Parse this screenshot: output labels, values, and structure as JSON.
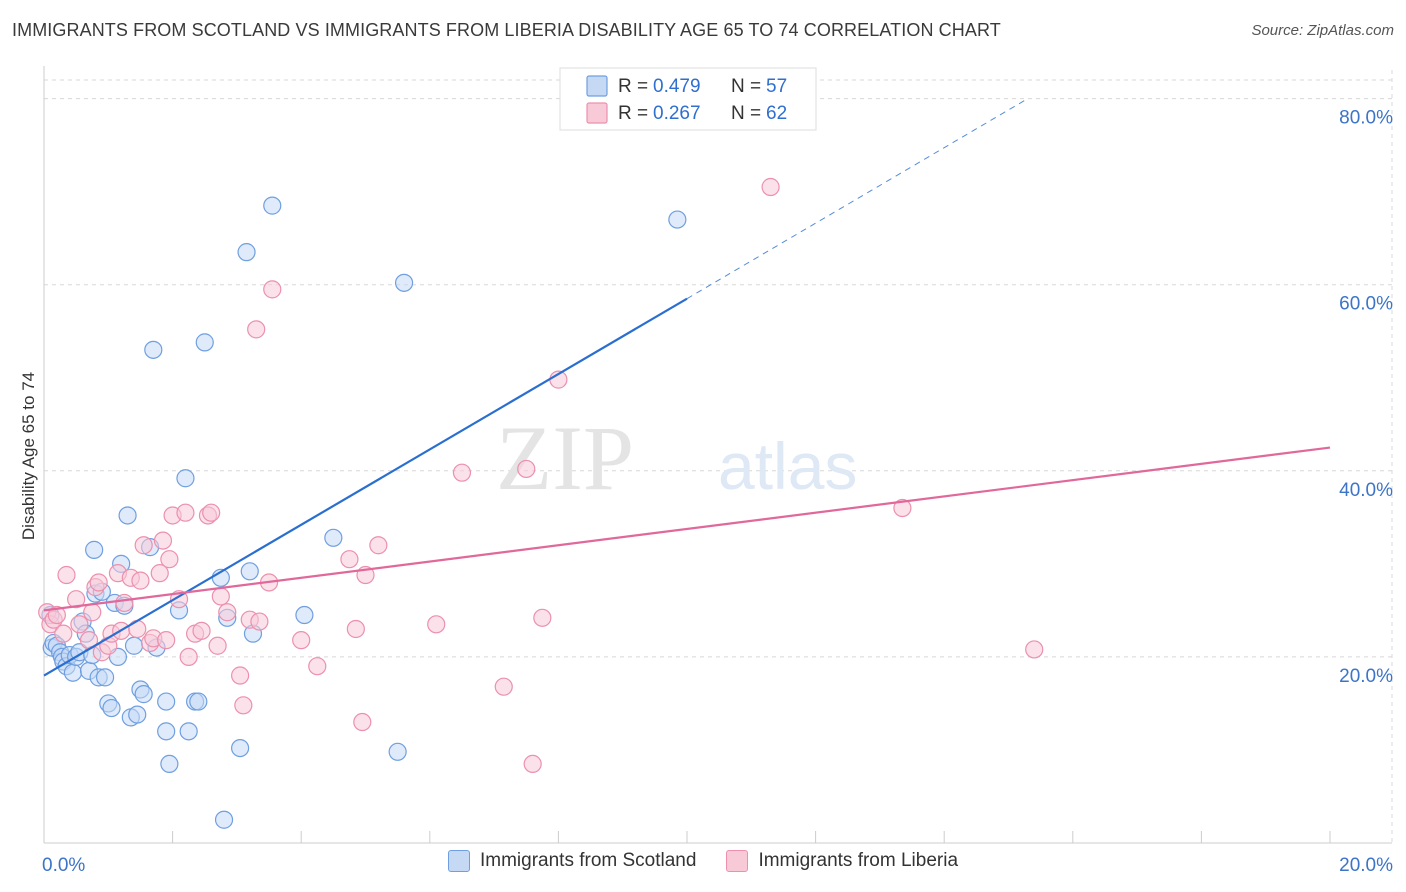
{
  "chart_data": {
    "type": "scatter",
    "title": "IMMIGRANTS FROM SCOTLAND VS IMMIGRANTS FROM LIBERIA DISABILITY AGE 65 TO 74 CORRELATION CHART",
    "source": "Source: ZipAtlas.com",
    "watermark_left": "ZIP",
    "watermark_right": "atlas",
    "xlabel": "",
    "ylabel": "Disability Age 65 to 74",
    "xlim": [
      0,
      20
    ],
    "ylim": [
      0,
      82
    ],
    "x_tick_labels": [
      {
        "value": 0,
        "label": "0.0%"
      },
      {
        "value": 20,
        "label": "20.0%"
      }
    ],
    "y_tick_labels": [
      {
        "value": 20,
        "label": "20.0%"
      },
      {
        "value": 40,
        "label": "40.0%"
      },
      {
        "value": 60,
        "label": "60.0%"
      },
      {
        "value": 80,
        "label": "80.0%"
      }
    ],
    "x_minor_ticks": [
      0,
      2,
      4,
      6,
      8,
      10,
      12,
      14,
      16,
      18,
      20
    ],
    "grid": true,
    "legend": {
      "placement": "top-center",
      "entries": [
        {
          "r_label": "R =",
          "r_value": "0.479",
          "n_label": "N =",
          "n_value": "57"
        },
        {
          "r_label": "R =",
          "r_value": "0.267",
          "n_label": "N =",
          "n_value": "62"
        }
      ]
    },
    "series": [
      {
        "name": "Immigrants from Scotland",
        "color": "#6f9fe0",
        "fill": "#c5d9f5",
        "line_color": "#2a6fd0",
        "trend": {
          "x0": 0,
          "y0": 18.0,
          "x1": 10,
          "y1": 58.5,
          "dash_to_x": 15.3,
          "dash_to_y": 80
        },
        "points": [
          [
            0.1,
            24.5
          ],
          [
            0.12,
            21.0
          ],
          [
            0.15,
            21.5
          ],
          [
            0.2,
            21.2
          ],
          [
            0.25,
            20.5
          ],
          [
            0.28,
            20.0
          ],
          [
            0.3,
            19.5
          ],
          [
            0.35,
            19.0
          ],
          [
            0.4,
            20.2
          ],
          [
            0.45,
            18.3
          ],
          [
            0.5,
            20.0
          ],
          [
            0.55,
            20.5
          ],
          [
            0.6,
            23.8
          ],
          [
            0.65,
            22.5
          ],
          [
            0.7,
            18.5
          ],
          [
            0.75,
            20.2
          ],
          [
            0.8,
            26.8
          ],
          [
            0.78,
            31.5
          ],
          [
            0.85,
            17.8
          ],
          [
            0.9,
            27.0
          ],
          [
            0.95,
            17.8
          ],
          [
            1.0,
            15.0
          ],
          [
            1.05,
            14.5
          ],
          [
            1.1,
            25.8
          ],
          [
            1.15,
            20.0
          ],
          [
            1.2,
            30.0
          ],
          [
            1.25,
            25.5
          ],
          [
            1.3,
            35.2
          ],
          [
            1.35,
            13.5
          ],
          [
            1.4,
            21.2
          ],
          [
            1.45,
            13.8
          ],
          [
            1.5,
            16.5
          ],
          [
            1.55,
            16.0
          ],
          [
            1.65,
            31.8
          ],
          [
            1.7,
            53.0
          ],
          [
            1.75,
            21.0
          ],
          [
            1.9,
            12.0
          ],
          [
            1.9,
            15.2
          ],
          [
            1.95,
            8.5
          ],
          [
            2.1,
            25.0
          ],
          [
            2.2,
            39.2
          ],
          [
            2.25,
            12.0
          ],
          [
            2.35,
            15.2
          ],
          [
            2.4,
            15.2
          ],
          [
            2.5,
            53.8
          ],
          [
            2.75,
            28.5
          ],
          [
            2.8,
            2.5
          ],
          [
            2.85,
            24.2
          ],
          [
            3.05,
            10.2
          ],
          [
            3.2,
            29.2
          ],
          [
            3.15,
            63.5
          ],
          [
            3.25,
            22.5
          ],
          [
            3.55,
            68.5
          ],
          [
            4.05,
            24.5
          ],
          [
            4.5,
            32.8
          ],
          [
            5.5,
            9.8
          ],
          [
            5.6,
            60.2
          ],
          [
            9.85,
            67.0
          ]
        ]
      },
      {
        "name": "Immigrants from Liberia",
        "color": "#ec90ad",
        "fill": "#f8cad8",
        "line_color": "#e0689a",
        "trend": {
          "x0": 0,
          "y0": 25.0,
          "x1": 20,
          "y1": 42.5
        },
        "points": [
          [
            0.05,
            24.8
          ],
          [
            0.1,
            23.5
          ],
          [
            0.15,
            24.0
          ],
          [
            0.2,
            24.5
          ],
          [
            0.3,
            22.5
          ],
          [
            0.35,
            28.8
          ],
          [
            0.5,
            26.2
          ],
          [
            0.55,
            23.5
          ],
          [
            0.7,
            21.8
          ],
          [
            0.75,
            24.8
          ],
          [
            0.8,
            27.5
          ],
          [
            0.85,
            28.0
          ],
          [
            0.9,
            20.5
          ],
          [
            1.0,
            21.2
          ],
          [
            1.05,
            22.5
          ],
          [
            1.15,
            29.0
          ],
          [
            1.2,
            22.8
          ],
          [
            1.25,
            25.8
          ],
          [
            1.35,
            28.5
          ],
          [
            1.45,
            23.0
          ],
          [
            1.5,
            28.2
          ],
          [
            1.55,
            32.0
          ],
          [
            1.65,
            21.5
          ],
          [
            1.7,
            22.0
          ],
          [
            1.8,
            29.0
          ],
          [
            1.85,
            32.5
          ],
          [
            1.9,
            21.8
          ],
          [
            1.95,
            30.5
          ],
          [
            2.0,
            35.2
          ],
          [
            2.1,
            26.2
          ],
          [
            2.2,
            35.5
          ],
          [
            2.25,
            20.0
          ],
          [
            2.35,
            22.5
          ],
          [
            2.45,
            22.8
          ],
          [
            2.55,
            35.2
          ],
          [
            2.6,
            35.5
          ],
          [
            2.7,
            21.2
          ],
          [
            2.75,
            26.5
          ],
          [
            2.85,
            24.8
          ],
          [
            3.05,
            18.0
          ],
          [
            3.1,
            14.8
          ],
          [
            3.2,
            24.0
          ],
          [
            3.3,
            55.2
          ],
          [
            3.35,
            23.8
          ],
          [
            3.5,
            28.0
          ],
          [
            3.55,
            59.5
          ],
          [
            4.0,
            21.8
          ],
          [
            4.25,
            19.0
          ],
          [
            4.75,
            30.5
          ],
          [
            4.85,
            23.0
          ],
          [
            4.95,
            13.0
          ],
          [
            5.0,
            28.8
          ],
          [
            5.2,
            32.0
          ],
          [
            6.1,
            23.5
          ],
          [
            6.5,
            39.8
          ],
          [
            7.15,
            16.8
          ],
          [
            7.5,
            40.2
          ],
          [
            7.6,
            8.5
          ],
          [
            7.75,
            24.2
          ],
          [
            8.0,
            49.8
          ],
          [
            11.3,
            70.5
          ],
          [
            13.35,
            36.0
          ],
          [
            15.4,
            20.8
          ]
        ]
      }
    ]
  }
}
